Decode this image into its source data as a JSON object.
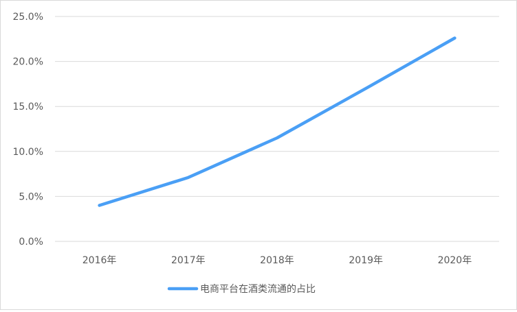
{
  "chart_data": {
    "type": "line",
    "title": "",
    "categories": [
      "2016年",
      "2017年",
      "2018年",
      "2019年",
      "2020年"
    ],
    "series": [
      {
        "name": "电商平台在酒类流通的占比",
        "values": [
          4.0,
          7.1,
          11.5,
          17.0,
          22.6
        ],
        "color": "#4A9FF5"
      }
    ],
    "ylim": [
      0,
      25
    ],
    "yticks": [
      "0.0%",
      "5.0%",
      "10.0%",
      "15.0%",
      "20.0%",
      "25.0%"
    ],
    "grid": true,
    "legend": "bottom"
  }
}
